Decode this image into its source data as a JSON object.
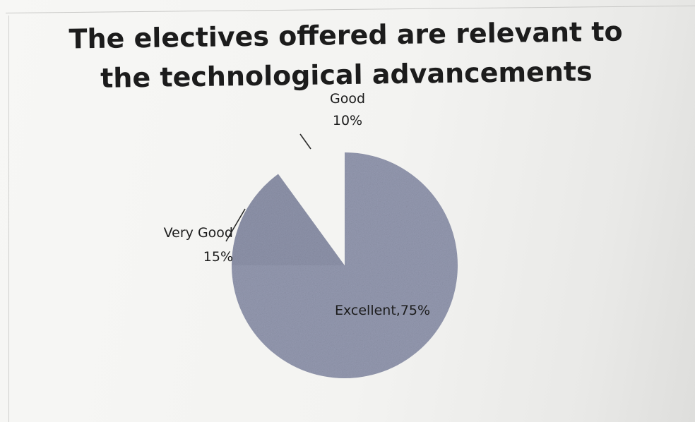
{
  "chart_data": {
    "type": "pie",
    "title": "The electives offered are relevant to the technological advancements",
    "slices": [
      {
        "label": "Excellent",
        "value": 75,
        "display_lines": [
          "Excellent,75%"
        ],
        "color": "#9499b0"
      },
      {
        "label": "Very Good",
        "value": 15,
        "display_lines": [
          "Very Good",
          "15%"
        ],
        "color": "#8e93aa"
      },
      {
        "label": "Good",
        "value": 10,
        "display_lines": [
          "Good",
          "10%"
        ],
        "color": "#f4f4f2"
      }
    ],
    "legend": "none",
    "data_labels": "category and percentage"
  }
}
